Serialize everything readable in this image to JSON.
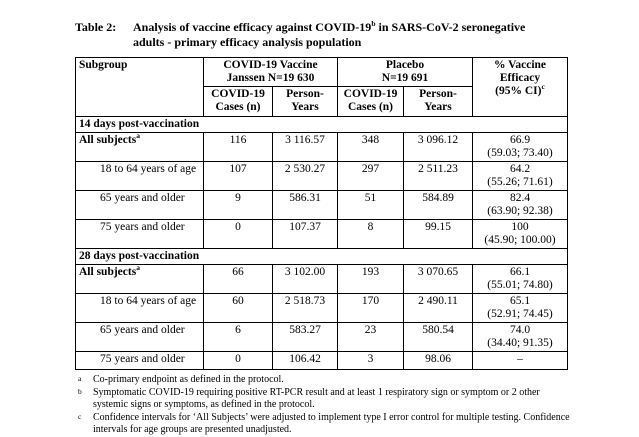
{
  "title": {
    "label": "Table 2:",
    "line1_pre": "Analysis of vaccine efficacy against COVID-19",
    "line1_sup": "b",
    "line1_post": " in SARS-CoV-2 seronegative",
    "line2": "adults - primary efficacy analysis population"
  },
  "table": {
    "header": {
      "subgroup": "Subgroup",
      "vaccine_line1": "COVID-19 Vaccine",
      "vaccine_line2": "Janssen N=19 630",
      "placebo_line1": "Placebo",
      "placebo_line2": "N=19 691",
      "cases_line1": "COVID-19",
      "cases_line2": "Cases (n)",
      "py_line1": "Person-",
      "py_line2": "Years",
      "efficacy_line1": "% Vaccine",
      "efficacy_line2": "Efficacy",
      "efficacy_line3": "(95% CI)",
      "efficacy_sup": "c"
    },
    "sections": [
      {
        "title": "14 days post-vaccination",
        "rows": [
          {
            "subgroup": "All subjects",
            "sup": "a",
            "vaccine_cases": "116",
            "vaccine_py": "3 116.57",
            "placebo_cases": "348",
            "placebo_py": "3 096.12",
            "ve": "66.9",
            "ci": "(59.03; 73.40)"
          },
          {
            "subgroup": "18 to 64 years of age",
            "vaccine_cases": "107",
            "vaccine_py": "2 530.27",
            "placebo_cases": "297",
            "placebo_py": "2 511.23",
            "ve": "64.2",
            "ci": "(55.26; 71.61)"
          },
          {
            "subgroup": "65 years and older",
            "vaccine_cases": "9",
            "vaccine_py": "586.31",
            "placebo_cases": "51",
            "placebo_py": "584.89",
            "ve": "82.4",
            "ci": "(63.90; 92.38)"
          },
          {
            "subgroup": "75 years and older",
            "vaccine_cases": "0",
            "vaccine_py": "107.37",
            "placebo_cases": "8",
            "placebo_py": "99.15",
            "ve": "100",
            "ci": "(45.90; 100.00)"
          }
        ]
      },
      {
        "title": "28 days post-vaccination",
        "rows": [
          {
            "subgroup": "All subjects",
            "sup": "a",
            "vaccine_cases": "66",
            "vaccine_py": "3 102.00",
            "placebo_cases": "193",
            "placebo_py": "3 070.65",
            "ve": "66.1",
            "ci": "(55.01; 74.80)"
          },
          {
            "subgroup": "18 to 64 years of age",
            "vaccine_cases": "60",
            "vaccine_py": "2 518.73",
            "placebo_cases": "170",
            "placebo_py": "2 490.11",
            "ve": "65.1",
            "ci": "(52.91; 74.45)"
          },
          {
            "subgroup": "65 years and older",
            "vaccine_cases": "6",
            "vaccine_py": "583.27",
            "placebo_cases": "23",
            "placebo_py": "580.54",
            "ve": "74.0",
            "ci": "(34.40; 91.35)"
          },
          {
            "subgroup": "75 years and older",
            "vaccine_cases": "0",
            "vaccine_py": "106.42",
            "placebo_cases": "3",
            "placebo_py": "98.06",
            "ve": "–",
            "ci": ""
          }
        ]
      }
    ]
  },
  "footnotes": [
    {
      "marker": "a",
      "text": "Co-primary endpoint as defined in the protocol."
    },
    {
      "marker": "b",
      "text": "Symptomatic COVID-19 requiring positive RT-PCR result and at least 1 respiratory sign or symptom or 2 other systemic signs or symptoms, as defined in the protocol."
    },
    {
      "marker": "c",
      "text": "Confidence intervals for ‘All Subjects’ were adjusted to implement type I error control for multiple testing. Confidence intervals for age groups are presented unadjusted."
    }
  ]
}
